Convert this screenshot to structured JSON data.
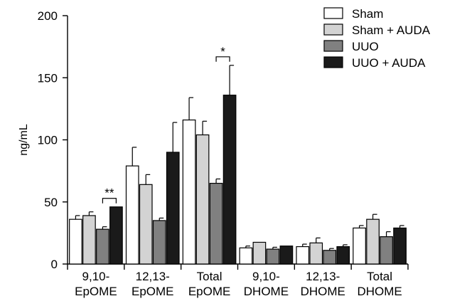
{
  "chart_data": {
    "type": "bar",
    "title": "",
    "xlabel": "",
    "ylabel": "ng/mL",
    "ylim": [
      0,
      200
    ],
    "yticks": [
      0,
      50,
      100,
      150,
      200
    ],
    "grid": false,
    "legend_position": "top-right",
    "categories": [
      [
        "9,10-",
        "EpOME"
      ],
      [
        "12,13-",
        "EpOME"
      ],
      [
        "Total",
        "EpOME"
      ],
      [
        "9,10-",
        "DHOME"
      ],
      [
        "12,13-",
        "DHOME"
      ],
      [
        "Total",
        "DHOME"
      ]
    ],
    "series": [
      {
        "name": "Sham",
        "color": "#ffffff",
        "values": [
          36,
          79,
          116,
          13,
          14,
          29
        ],
        "errors": [
          3,
          15,
          18,
          1.5,
          2,
          2
        ]
      },
      {
        "name": "Sham + AUDA",
        "color": "#d3d3d3",
        "values": [
          39,
          64,
          104,
          17.5,
          17,
          36
        ],
        "errors": [
          3,
          8,
          11,
          0,
          4,
          4
        ]
      },
      {
        "name": "UUO",
        "color": "#808080",
        "values": [
          28,
          35,
          65,
          12,
          11,
          22
        ],
        "errors": [
          2,
          2,
          3.5,
          1.5,
          1.5,
          4
        ]
      },
      {
        "name": "UUO + AUDA",
        "color": "#1a1a1a",
        "values": [
          46,
          90,
          136,
          14.5,
          14,
          29
        ],
        "errors": [
          0,
          24,
          24,
          0,
          1.5,
          2
        ]
      }
    ],
    "annotations": [
      {
        "text": "**",
        "category_index": 0,
        "from_series": 2,
        "to_series": 3
      },
      {
        "text": "*",
        "category_index": 2,
        "from_series": 2,
        "to_series": 3
      }
    ]
  }
}
